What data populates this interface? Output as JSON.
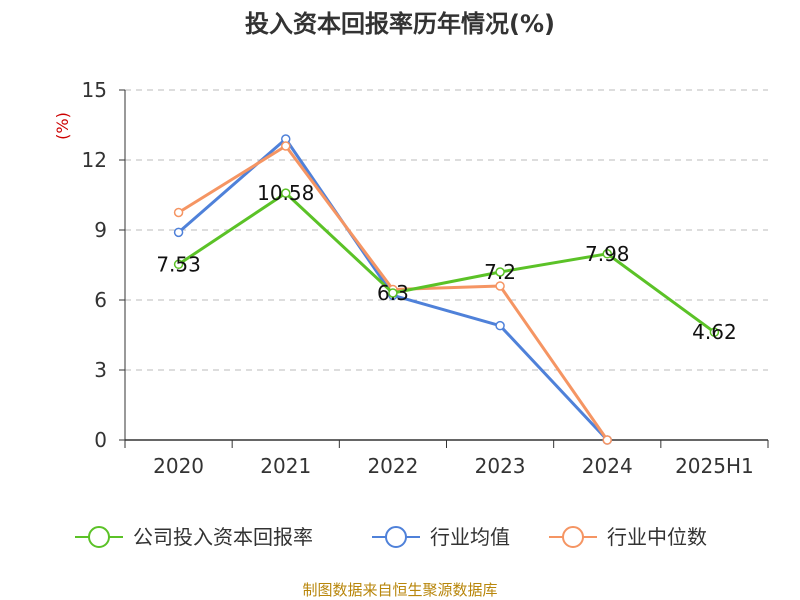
{
  "chart_data": {
    "type": "line",
    "title": "投入资本回报率历年情况(%)",
    "ylabel": "(%)",
    "xlabel": "",
    "categories": [
      "2020",
      "2021",
      "2022",
      "2023",
      "2024",
      "2025H1"
    ],
    "ylim": [
      0,
      15
    ],
    "yticks": [
      0,
      3,
      6,
      9,
      12,
      15
    ],
    "grid": true,
    "legend_position": "bottom",
    "series": [
      {
        "name": "公司投入资本回报率",
        "color": "#5bc227",
        "values": [
          7.53,
          10.58,
          6.3,
          7.2,
          7.98,
          4.62
        ],
        "labels": [
          "7.53",
          "10.58",
          "6.3",
          "7.2",
          "7.98",
          "4.62"
        ]
      },
      {
        "name": "行业均值",
        "color": "#4f81d9",
        "values": [
          8.9,
          12.9,
          6.2,
          4.9,
          0,
          null
        ]
      },
      {
        "name": "行业中位数",
        "color": "#f59563",
        "values": [
          9.75,
          12.6,
          6.45,
          6.6,
          0,
          null
        ]
      }
    ]
  },
  "source": "制图数据来自恒生聚源数据库"
}
